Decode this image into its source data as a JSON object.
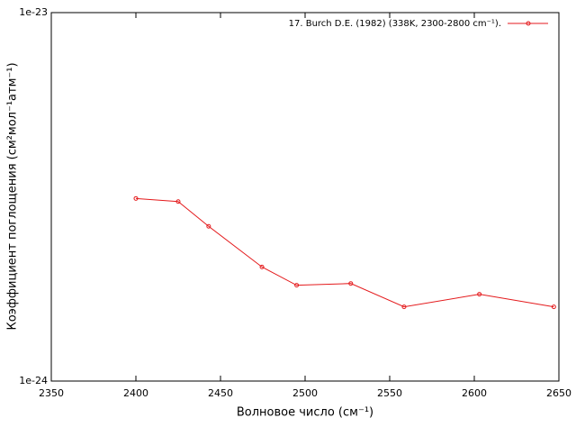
{
  "chart_data": {
    "type": "line",
    "xlabel": "Волновое число (см⁻¹)",
    "ylabel": "Коэффициент поглощения (см²мол⁻¹атм⁻¹)",
    "x": [
      2400,
      2425,
      2443,
      2474.5,
      2495,
      2527,
      2558.5,
      2603,
      2647
    ],
    "series": [
      {
        "name": "17. Burch D.E. (1982) (338K, 2300-2800 cm⁻¹).",
        "color": "#e41a1c",
        "values": [
          3.13e-24,
          3.07e-24,
          2.63e-24,
          2.04e-24,
          1.82e-24,
          1.84e-24,
          1.59e-24,
          1.72e-24,
          1.59e-24
        ]
      }
    ],
    "xlim": [
      2350,
      2650
    ],
    "xticks": [
      2350,
      2400,
      2450,
      2500,
      2550,
      2600,
      2650
    ],
    "ylim": [
      1e-24,
      1e-23
    ],
    "yticks": [
      {
        "value": 1e-24,
        "label": "1e-24"
      },
      {
        "value": 1e-23,
        "label": "1e-23"
      }
    ],
    "ylog": true,
    "legend": "top-right"
  }
}
